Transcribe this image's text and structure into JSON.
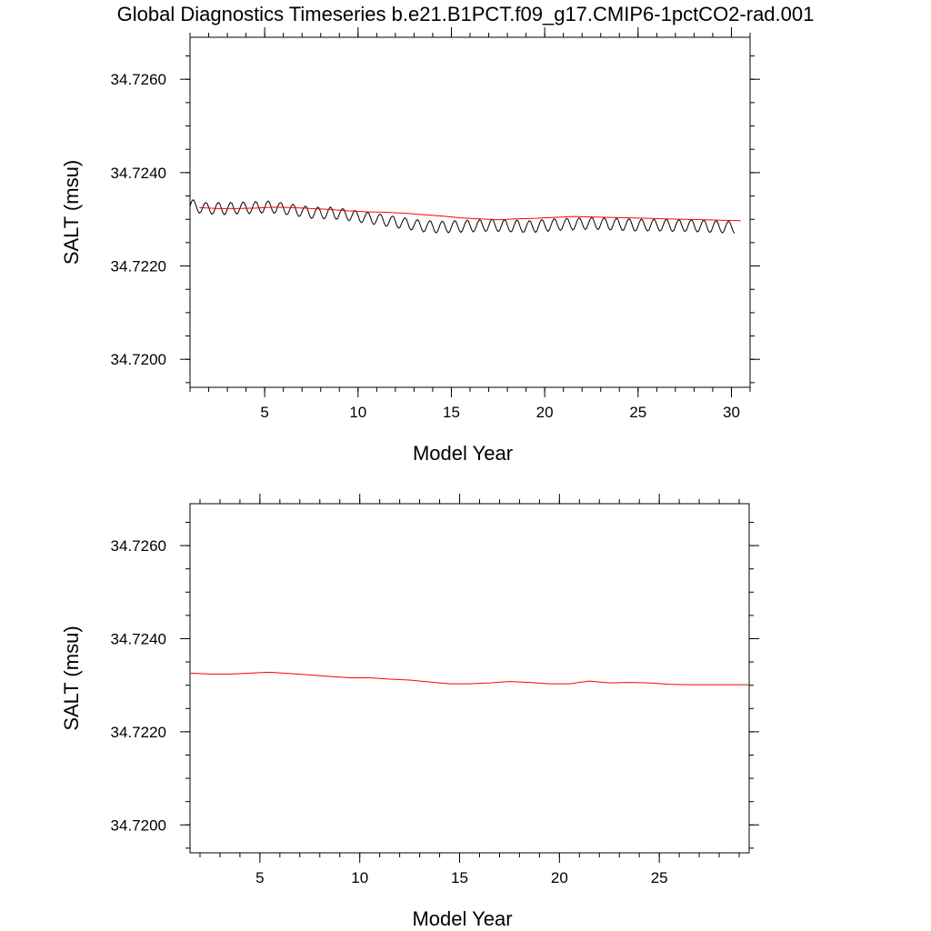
{
  "figure": {
    "title": "Global Diagnostics Timeseries b.e21.B1PCT.f09_g17.CMIP6-1pctCO2-rad.001"
  },
  "colors": {
    "monthly": "#000000",
    "annual": "#ff0000",
    "axis": "#000000"
  },
  "chart_data": [
    {
      "type": "line",
      "title": "",
      "xlabel": "Model Year",
      "ylabel": "SALT (msu)",
      "xlim": [
        1,
        31
      ],
      "ylim": [
        34.7194,
        34.7269
      ],
      "x_ticks": [
        5,
        10,
        15,
        20,
        25,
        30
      ],
      "y_ticks": [
        "34.7200",
        "34.7220",
        "34.7240",
        "34.7260"
      ],
      "grid": false,
      "legend": "none",
      "series": [
        {
          "role": "monthly",
          "color": "#000000",
          "x_start": 1.0,
          "x_step": 0.0833333,
          "values": [
            34.72328,
            34.72338,
            34.72342,
            34.72338,
            34.72328,
            34.72318,
            34.72313,
            34.72316,
            34.72324,
            34.72332,
            34.72336,
            34.72334,
            34.72326,
            34.72316,
            34.72311,
            34.72313,
            34.72322,
            34.72331,
            34.72336,
            34.72334,
            34.72325,
            34.72315,
            34.7231,
            34.72313,
            34.72322,
            34.72331,
            34.72336,
            34.72334,
            34.72325,
            34.72316,
            34.72311,
            34.72314,
            34.72323,
            34.72332,
            34.72337,
            34.72335,
            34.72326,
            34.72317,
            34.72312,
            34.72315,
            34.72324,
            34.72333,
            34.72338,
            34.72336,
            34.72327,
            34.72318,
            34.72313,
            34.72316,
            34.72325,
            34.72334,
            34.72339,
            34.72337,
            34.72327,
            34.72318,
            34.72313,
            34.72315,
            34.72324,
            34.72332,
            34.72336,
            34.72334,
            34.72325,
            34.72315,
            34.7231,
            34.72312,
            34.7232,
            34.72328,
            34.72332,
            34.7233,
            34.72321,
            34.72311,
            34.72306,
            34.72308,
            34.72316,
            34.72324,
            34.72328,
            34.72326,
            34.72317,
            34.72307,
            34.72302,
            34.72304,
            34.72313,
            34.72321,
            34.72326,
            34.72324,
            34.72315,
            34.72306,
            34.72301,
            34.72303,
            34.72312,
            34.72321,
            34.72326,
            34.72324,
            34.72315,
            34.72305,
            34.723,
            34.72302,
            34.72311,
            34.72319,
            34.72323,
            34.72321,
            34.72312,
            34.72302,
            34.72297,
            34.72299,
            34.72307,
            34.72315,
            34.72319,
            34.72317,
            34.72308,
            34.72298,
            34.72293,
            34.72295,
            34.72303,
            34.72311,
            34.72315,
            34.72313,
            34.72304,
            34.72294,
            34.72289,
            34.72291,
            34.72299,
            34.72307,
            34.72311,
            34.72309,
            34.723,
            34.7229,
            34.72285,
            34.72287,
            34.72295,
            34.72303,
            34.72307,
            34.72305,
            34.72296,
            34.72286,
            34.72281,
            34.72283,
            34.72291,
            34.72299,
            34.72303,
            34.72301,
            34.72292,
            34.72282,
            34.72277,
            34.72279,
            34.72287,
            34.72295,
            34.72299,
            34.72297,
            34.72288,
            34.72278,
            34.72273,
            34.72275,
            34.72284,
            34.72292,
            34.72297,
            34.72295,
            34.72286,
            34.72276,
            34.72271,
            34.72273,
            34.72282,
            34.72291,
            34.72296,
            34.72294,
            34.72285,
            34.72276,
            34.72271,
            34.72274,
            34.72283,
            34.72292,
            34.72297,
            34.72295,
            34.72286,
            34.72277,
            34.72272,
            34.72275,
            34.72284,
            34.72293,
            34.72298,
            34.72296,
            34.72287,
            34.72278,
            34.72273,
            34.72276,
            34.72285,
            34.72294,
            34.72299,
            34.72297,
            34.72288,
            34.72279,
            34.72274,
            34.72277,
            34.72286,
            34.72295,
            34.723,
            34.72298,
            34.72288,
            34.72279,
            34.72274,
            34.72276,
            34.72285,
            34.72294,
            34.72299,
            34.72297,
            34.72287,
            34.72278,
            34.72273,
            34.72275,
            34.72284,
            34.72293,
            34.72298,
            34.72296,
            34.72286,
            34.72277,
            34.72272,
            34.72274,
            34.72283,
            34.72292,
            34.72297,
            34.72295,
            34.72286,
            34.72277,
            34.72272,
            34.72275,
            34.72285,
            34.72294,
            34.72299,
            34.72297,
            34.72288,
            34.72279,
            34.72274,
            34.72277,
            34.72287,
            34.72296,
            34.72301,
            34.72299,
            34.7229,
            34.72281,
            34.72276,
            34.72279,
            34.72288,
            34.72297,
            34.72302,
            34.723,
            34.72291,
            34.72282,
            34.72277,
            34.7228,
            34.72289,
            34.72298,
            34.72303,
            34.72301,
            34.72292,
            34.72283,
            34.72278,
            34.72281,
            34.7229,
            34.72299,
            34.72304,
            34.72302,
            34.72293,
            34.72283,
            34.72278,
            34.7228,
            34.72289,
            34.72298,
            34.72303,
            34.72301,
            34.72292,
            34.72282,
            34.72277,
            34.72279,
            34.72288,
            34.72297,
            34.72302,
            34.723,
            34.72291,
            34.72281,
            34.72276,
            34.72278,
            34.72287,
            34.72296,
            34.72301,
            34.72299,
            34.7229,
            34.7228,
            34.72275,
            34.72277,
            34.72286,
            34.72295,
            34.723,
            34.72298,
            34.72289,
            34.7228,
            34.72275,
            34.72277,
            34.72286,
            34.72295,
            34.723,
            34.72298,
            34.72289,
            34.7228,
            34.72275,
            34.72277,
            34.72286,
            34.72295,
            34.723,
            34.72298,
            34.72289,
            34.72279,
            34.72274,
            34.72276,
            34.72285,
            34.72294,
            34.72299,
            34.72297,
            34.72288,
            34.72279,
            34.72274,
            34.72276,
            34.72285,
            34.72294,
            34.72299,
            34.72297,
            34.72288,
            34.72278,
            34.72273,
            34.72275,
            34.72284,
            34.72293,
            34.72298,
            34.72296,
            34.72287,
            34.72277,
            34.72272,
            34.72274,
            34.72283,
            34.72292,
            34.72297,
            34.72295,
            34.72286,
            34.72276,
            34.72271,
            34.72273,
            34.72282,
            34.72291,
            34.72296,
            34.72294,
            34.72285,
            34.72275,
            34.7227
          ]
        },
        {
          "role": "annual mean",
          "color": "#ff0000",
          "x": [
            1.5,
            2.5,
            3.5,
            4.5,
            5.5,
            6.5,
            7.5,
            8.5,
            9.5,
            10.5,
            11.5,
            12.5,
            13.5,
            14.5,
            15.5,
            16.5,
            17.5,
            18.5,
            19.5,
            20.5,
            21.5,
            22.5,
            23.5,
            24.5,
            25.5,
            26.5,
            27.5,
            28.5,
            29.5,
            30.5
          ],
          "values": [
            34.72325,
            34.72323,
            34.72323,
            34.72324,
            34.72326,
            34.72325,
            34.72323,
            34.72321,
            34.72318,
            34.72316,
            34.72315,
            34.72313,
            34.7231,
            34.72307,
            34.72303,
            34.72301,
            34.72299,
            34.72301,
            34.72302,
            34.72304,
            34.72306,
            34.72305,
            34.72304,
            34.72303,
            34.72302,
            34.72301,
            34.723,
            34.72299,
            34.72298,
            34.72297
          ]
        }
      ]
    },
    {
      "type": "line",
      "title": "",
      "xlabel": "Model Year",
      "ylabel": "SALT (msu)",
      "xlim": [
        1.5,
        29.5
      ],
      "ylim": [
        34.7194,
        34.7269
      ],
      "x_ticks": [
        5,
        10,
        15,
        20,
        25
      ],
      "y_ticks": [
        "34.7200",
        "34.7220",
        "34.7240",
        "34.7260"
      ],
      "grid": false,
      "legend": "none",
      "series": [
        {
          "role": "annual mean",
          "color": "#ff0000",
          "x": [
            1.5,
            2.5,
            3.5,
            4.5,
            5.5,
            6.5,
            7.5,
            8.5,
            9.5,
            10.5,
            11.5,
            12.5,
            13.5,
            14.5,
            15.5,
            16.5,
            17.5,
            18.5,
            19.5,
            20.5,
            21.5,
            22.5,
            23.5,
            24.5,
            25.5,
            26.5,
            27.5,
            28.5,
            29.5
          ],
          "values": [
            34.72326,
            34.72324,
            34.72324,
            34.72326,
            34.72328,
            34.72325,
            34.72322,
            34.72319,
            34.72316,
            34.72316,
            34.72313,
            34.72311,
            34.72307,
            34.72303,
            34.72303,
            34.72305,
            34.72308,
            34.72306,
            34.72303,
            34.72303,
            34.72309,
            34.72305,
            34.72306,
            34.72305,
            34.72302,
            34.72301,
            34.72301,
            34.72301,
            34.72301
          ]
        }
      ]
    }
  ]
}
